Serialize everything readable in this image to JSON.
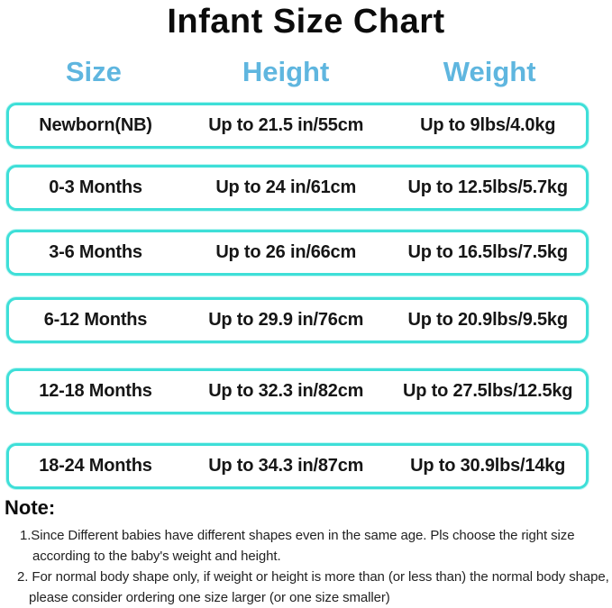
{
  "title": "Infant Size Chart",
  "colors": {
    "header_blue": "#5fb6df",
    "row_border_turquoise": "#3edfd8",
    "title_black": "#0c0c0c"
  },
  "table": {
    "headers": [
      "Size",
      "Height",
      "Weight"
    ],
    "rows": [
      {
        "size": "Newborn(NB)",
        "height": "Up to 21.5 in/55cm",
        "weight": "Up to 9lbs/4.0kg"
      },
      {
        "size": "0-3 Months",
        "height": "Up to 24 in/61cm",
        "weight": "Up to 12.5lbs/5.7kg"
      },
      {
        "size": "3-6 Months",
        "height": "Up to 26 in/66cm",
        "weight": "Up to 16.5lbs/7.5kg"
      },
      {
        "size": "6-12 Months",
        "height": "Up to 29.9 in/76cm",
        "weight": "Up to 20.9lbs/9.5kg"
      },
      {
        "size": "12-18 Months",
        "height": "Up to 32.3 in/82cm",
        "weight": "Up to 27.5lbs/12.5kg"
      },
      {
        "size": "18-24 Months",
        "height": "Up to 34.3 in/87cm",
        "weight": "Up to 30.9lbs/14kg"
      }
    ]
  },
  "note": {
    "label": "Note:",
    "lines": [
      "1.Since Different babies have different shapes even in the same age. Pls choose the right size",
      "according to the baby's weight and height.",
      "2. For normal body shape only, if weight or height is more than (or less than) the normal body shape,",
      "please consider ordering one size larger (or one size smaller)"
    ]
  }
}
